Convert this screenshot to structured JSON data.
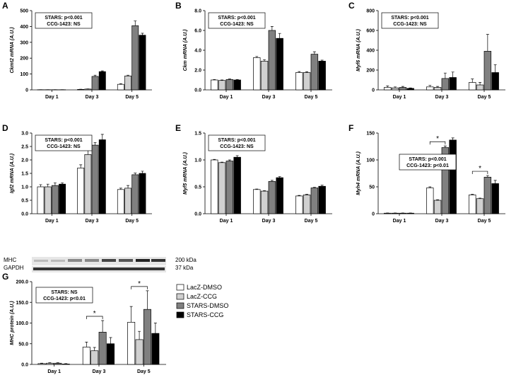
{
  "chart_data": [
    {
      "type": "bar",
      "panel": "A",
      "ylabel": "Ckmt2 mRNA (A.U.)",
      "categories": [
        "Day 1",
        "Day 3",
        "Day 5"
      ],
      "ylim": [
        0,
        500
      ],
      "yticks": [
        0,
        100,
        200,
        300,
        400,
        500
      ],
      "stats": [
        "STARS: p<0.001",
        "CCG-1423: NS"
      ],
      "series": [
        {
          "color": "#ffffff",
          "values": [
            1,
            3,
            35
          ],
          "errors": [
            0.5,
            1,
            4
          ]
        },
        {
          "color": "#d0d0d0",
          "values": [
            1,
            5,
            88
          ],
          "errors": [
            0.5,
            1,
            5
          ]
        },
        {
          "color": "#808080",
          "values": [
            1,
            85,
            405
          ],
          "errors": [
            0.5,
            8,
            30
          ]
        },
        {
          "color": "#000000",
          "values": [
            1,
            115,
            345
          ],
          "errors": [
            0.5,
            5,
            12
          ]
        }
      ]
    },
    {
      "type": "bar",
      "panel": "B",
      "ylabel": "Ckm mRNA (A.U.)",
      "categories": [
        "Day 1",
        "Day 3",
        "Day 5"
      ],
      "ylim": [
        0,
        8
      ],
      "yticks": [
        {
          "value": 0,
          "label": "0.0"
        },
        {
          "value": 2,
          "label": "2.0"
        },
        {
          "value": 4,
          "label": "4.0"
        },
        {
          "value": 6,
          "label": "6.0"
        },
        {
          "value": 8,
          "label": "8.0"
        }
      ],
      "stats": [
        "STARS: p<0.001",
        "CCG-1423: NS"
      ],
      "series": [
        {
          "color": "#ffffff",
          "values": [
            1.0,
            3.25,
            1.75
          ],
          "errors": [
            0.05,
            0.12,
            0.1
          ]
        },
        {
          "color": "#d0d0d0",
          "values": [
            0.95,
            2.9,
            1.75
          ],
          "errors": [
            0.05,
            0.15,
            0.08
          ]
        },
        {
          "color": "#808080",
          "values": [
            1.05,
            6.0,
            3.6
          ],
          "errors": [
            0.05,
            0.4,
            0.25
          ]
        },
        {
          "color": "#000000",
          "values": [
            1.0,
            5.2,
            2.9
          ],
          "errors": [
            0.05,
            0.5,
            0.1
          ]
        }
      ]
    },
    {
      "type": "bar",
      "panel": "C",
      "ylabel": "Myf6 mRNA (A.U.)",
      "categories": [
        "Day 1",
        "Day 3",
        "Day 5"
      ],
      "ylim": [
        0,
        800
      ],
      "yticks": [
        0,
        200,
        400,
        600,
        800
      ],
      "stats": [
        "STARS: p<0.001",
        "CCG-1423: NS"
      ],
      "series": [
        {
          "color": "#ffffff",
          "values": [
            25,
            30,
            75
          ],
          "errors": [
            15,
            15,
            35
          ]
        },
        {
          "color": "#d0d0d0",
          "values": [
            20,
            25,
            50
          ],
          "errors": [
            10,
            10,
            25
          ]
        },
        {
          "color": "#808080",
          "values": [
            25,
            115,
            390
          ],
          "errors": [
            10,
            55,
            170
          ]
        },
        {
          "color": "#000000",
          "values": [
            15,
            125,
            175
          ],
          "errors": [
            5,
            55,
            80
          ]
        }
      ]
    },
    {
      "type": "bar",
      "panel": "D",
      "ylabel": "Igf2 mRNA (A.U.)",
      "categories": [
        "Day 1",
        "Day 3",
        "Day 5"
      ],
      "ylim": [
        0,
        3
      ],
      "yticks": [
        {
          "value": 0,
          "label": "0.0"
        },
        {
          "value": 0.5,
          "label": "0.5"
        },
        {
          "value": 1,
          "label": "1.0"
        },
        {
          "value": 1.5,
          "label": "1.5"
        },
        {
          "value": 2,
          "label": "2.0"
        },
        {
          "value": 2.5,
          "label": "2.5"
        },
        {
          "value": 3,
          "label": "3.0"
        }
      ],
      "stats": [
        "STARS: p<0.001",
        "CCG-1423: NS"
      ],
      "series": [
        {
          "color": "#ffffff",
          "values": [
            1.0,
            1.7,
            0.9
          ],
          "errors": [
            0.08,
            0.12,
            0.05
          ]
        },
        {
          "color": "#d0d0d0",
          "values": [
            1.0,
            2.2,
            0.95
          ],
          "errors": [
            0.1,
            0.15,
            0.1
          ]
        },
        {
          "color": "#808080",
          "values": [
            1.05,
            2.55,
            1.45
          ],
          "errors": [
            0.1,
            0.1,
            0.06
          ]
        },
        {
          "color": "#000000",
          "values": [
            1.1,
            2.75,
            1.5
          ],
          "errors": [
            0.05,
            0.2,
            0.08
          ]
        }
      ]
    },
    {
      "type": "bar",
      "panel": "E",
      "ylabel": "Myf5 mRNA (A.U.)",
      "categories": [
        "Day 1",
        "Day 3",
        "Day 5"
      ],
      "ylim": [
        0,
        1.5
      ],
      "yticks": [
        {
          "value": 0,
          "label": "0.0"
        },
        {
          "value": 0.5,
          "label": "0.5"
        },
        {
          "value": 1,
          "label": "1.0"
        },
        {
          "value": 1.5,
          "label": "1.5"
        }
      ],
      "stats": [
        "STARS: p<0.001",
        "CCG-1423: NS"
      ],
      "series": [
        {
          "color": "#ffffff",
          "values": [
            1.0,
            0.45,
            0.33
          ],
          "errors": [
            0.01,
            0.01,
            0.01
          ]
        },
        {
          "color": "#d0d0d0",
          "values": [
            0.95,
            0.42,
            0.35
          ],
          "errors": [
            0.01,
            0.01,
            0.01
          ]
        },
        {
          "color": "#808080",
          "values": [
            0.98,
            0.6,
            0.48
          ],
          "errors": [
            0.02,
            0.02,
            0.01
          ]
        },
        {
          "color": "#000000",
          "values": [
            1.05,
            0.67,
            0.51
          ],
          "errors": [
            0.03,
            0.02,
            0.02
          ]
        }
      ]
    },
    {
      "type": "bar",
      "panel": "F",
      "ylabel": "Myh4 mRNA (A.U.)",
      "categories": [
        "Day 1",
        "Day 3",
        "Day 5"
      ],
      "ylim": [
        0,
        150
      ],
      "yticks": [
        0,
        50,
        100,
        150
      ],
      "stats": [
        "STARS: p<0.001",
        "CCG-1423: p<0.01"
      ],
      "annotations": [
        "*",
        "*"
      ],
      "series": [
        {
          "color": "#ffffff",
          "values": [
            1,
            48,
            35
          ],
          "errors": [
            0.3,
            2,
            1
          ]
        },
        {
          "color": "#d0d0d0",
          "values": [
            1,
            25,
            28
          ],
          "errors": [
            0.3,
            1,
            1
          ]
        },
        {
          "color": "#808080",
          "values": [
            1,
            123,
            68
          ],
          "errors": [
            0.3,
            3,
            3
          ]
        },
        {
          "color": "#000000",
          "values": [
            1,
            137,
            56
          ],
          "errors": [
            0.3,
            4,
            6
          ]
        }
      ]
    },
    {
      "type": "bar",
      "panel": "G",
      "ylabel": "MHC protein (A.U.)",
      "categories": [
        "Day 1",
        "Day 3",
        "Day 5"
      ],
      "ylim": [
        0,
        200
      ],
      "yticks": [
        {
          "value": 0,
          "label": "0.0"
        },
        {
          "value": 50,
          "label": "50.0"
        },
        {
          "value": 100,
          "label": "100.0"
        },
        {
          "value": 150,
          "label": "150.0"
        },
        {
          "value": 200,
          "label": "200.0"
        }
      ],
      "stats": [
        "STARS: NS",
        "CCG-1423: p<0.01"
      ],
      "annotations": [
        "*",
        "*"
      ],
      "blot": {
        "proteins": [
          "MHC",
          "GAPDH"
        ],
        "sizes": [
          "200 kDa",
          "37 kDa"
        ]
      },
      "series": [
        {
          "name": "LacZ-DMSO",
          "color": "#ffffff",
          "values": [
            2,
            42,
            102
          ],
          "errors": [
            1,
            12,
            38
          ]
        },
        {
          "name": "LacZ-CCG",
          "color": "#d0d0d0",
          "values": [
            3,
            33,
            60
          ],
          "errors": [
            1,
            8,
            20
          ]
        },
        {
          "name": "STARS-DMSO",
          "color": "#808080",
          "values": [
            3,
            78,
            133
          ],
          "errors": [
            1,
            28,
            45
          ]
        },
        {
          "name": "STARS-CCG",
          "color": "#000000",
          "values": [
            1,
            50,
            75
          ],
          "errors": [
            1,
            15,
            25
          ]
        }
      ]
    }
  ]
}
